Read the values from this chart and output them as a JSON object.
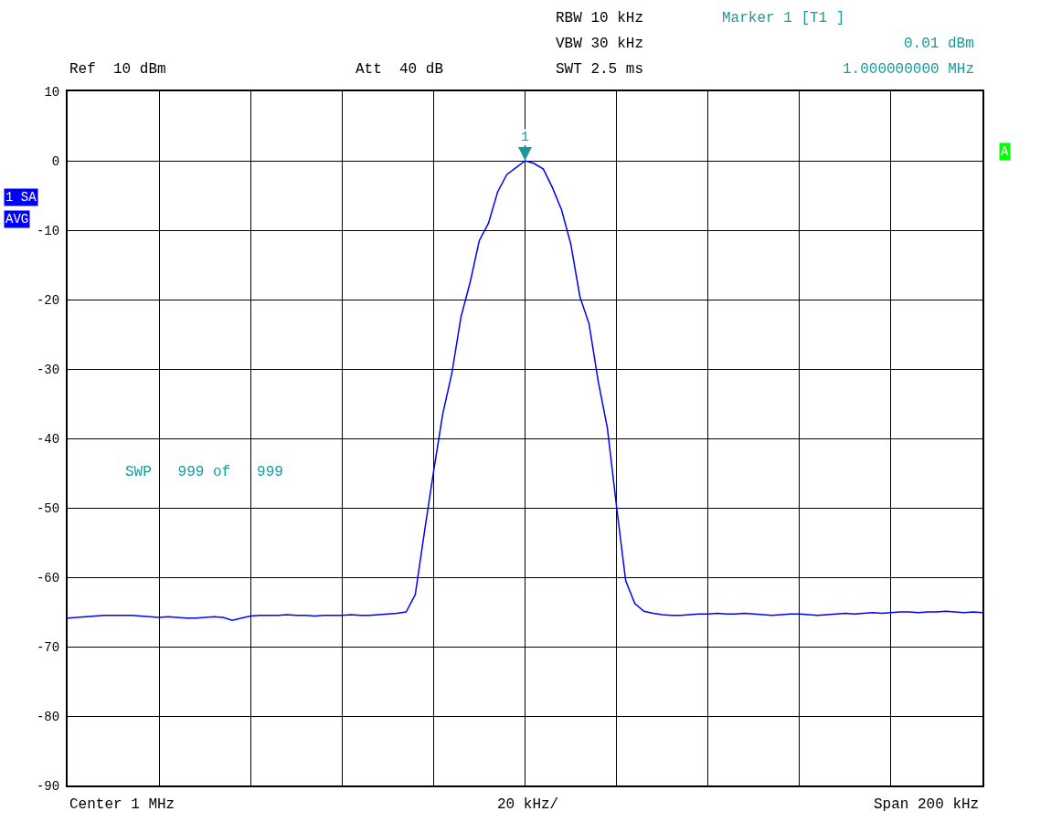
{
  "chart_data": {
    "type": "line",
    "categories": [
      null,
      null,
      null,
      null,
      null,
      null,
      null,
      null,
      null,
      null,
      null,
      null,
      null,
      null,
      null,
      null,
      null,
      null,
      null,
      null,
      null,
      null,
      null,
      null,
      null,
      null,
      null,
      null,
      null,
      null,
      null,
      null,
      null,
      null,
      null,
      null,
      null,
      null,
      null,
      null,
      null,
      null,
      null,
      null,
      null,
      null,
      null,
      null,
      null,
      null,
      null,
      null,
      null,
      null,
      null,
      null,
      null,
      null,
      null,
      null,
      null,
      null,
      null,
      null,
      null,
      null,
      null,
      null,
      null,
      null,
      null,
      null,
      null,
      null,
      null,
      null,
      null,
      null,
      null,
      null,
      null,
      null,
      null,
      null,
      null,
      null,
      null,
      null,
      null,
      null,
      null,
      null,
      null,
      null,
      null,
      null,
      null,
      null,
      null,
      null,
      null
    ],
    "series": [
      {
        "color": "#0000ff",
        "values": [
          -65.9,
          -65.8,
          -65.7,
          -65.6,
          -65.5,
          -65.5,
          -65.5,
          -65.5,
          -65.6,
          -65.7,
          -65.8,
          -65.7,
          -65.8,
          -65.9,
          -65.9,
          -65.8,
          -65.7,
          -65.8,
          -66.2,
          -65.9,
          -65.6,
          -65.5,
          -65.5,
          -65.5,
          -65.4,
          -65.5,
          -65.5,
          -65.6,
          -65.5,
          -65.5,
          -65.5,
          -65.4,
          -65.5,
          -65.5,
          -65.4,
          -65.3,
          -65.2,
          -65.0,
          -62.5,
          -53.5,
          -44.8,
          -36.5,
          -30.6,
          -22.5,
          -17.5,
          -11.5,
          -9.0,
          -4.5,
          -2.0,
          -1.0,
          0.0,
          -0.4,
          -1.2,
          -3.9,
          -7.1,
          -12.0,
          -19.6,
          -23.5,
          -31.8,
          -38.5,
          -49.8,
          -60.5,
          -63.8,
          -64.9,
          -65.2,
          -65.4,
          -65.5,
          -65.5,
          -65.4,
          -65.3,
          -65.3,
          -65.2,
          -65.3,
          -65.3,
          -65.2,
          -65.3,
          -65.4,
          -65.5,
          -65.4,
          -65.3,
          -65.3,
          -65.4,
          -65.5,
          -65.4,
          -65.3,
          -65.2,
          -65.3,
          -65.2,
          -65.1,
          -65.2,
          -65.1,
          -65.0,
          -65.0,
          -65.1,
          -65.0,
          -65.0,
          -64.9,
          -65.0,
          -65.1,
          -65.0,
          -65.1
        ]
      }
    ],
    "ylim": [
      -90,
      10
    ],
    "yticks": [
      10,
      0,
      -10,
      -20,
      -30,
      -40,
      -50,
      -60,
      -70,
      -80,
      -90
    ],
    "tick_labels": "y",
    "grid": true,
    "marker": "none",
    "line_style": "solid",
    "annotations": [
      "RBW 10 kHz",
      "VBW 30 kHz",
      "SWT 2.5 ms",
      "Marker 1 [T1 ]",
      "0.01 dBm",
      "1.000000000 MHz",
      "Ref  10 dBm",
      "Att  40 dB",
      "SWP   999 of   999",
      "Center 1 MHz",
      "20 kHz/",
      "Span 200 kHz",
      "1 SA",
      "AVG",
      "A",
      "1"
    ]
  }
}
